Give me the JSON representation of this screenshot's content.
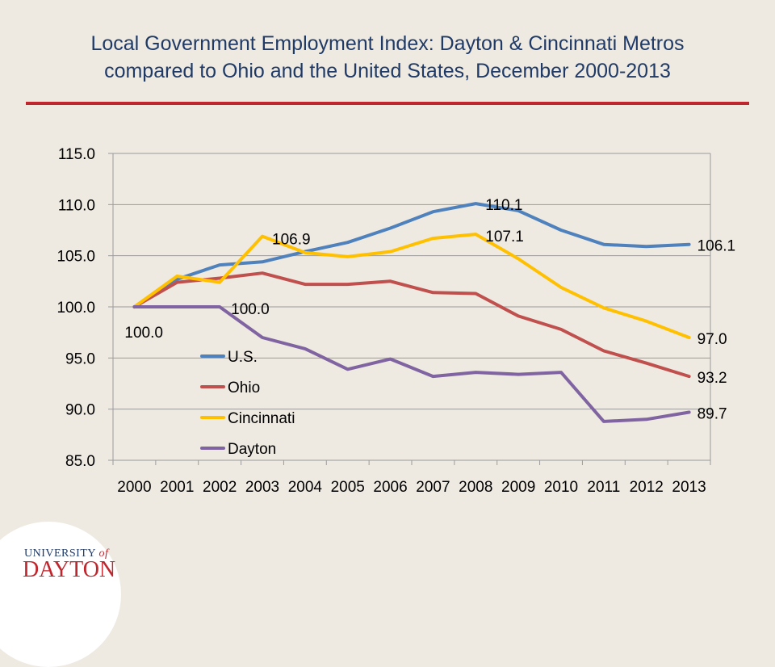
{
  "header": {
    "title_line1": "Local Government Employment Index: Dayton & Cincinnati Metros",
    "title_line2": "compared to Ohio and the United States, December 2000-2013"
  },
  "logo": {
    "university": "UNIVERSITY",
    "of": "of",
    "name": "DAYTON"
  },
  "colors": {
    "title": "#1F3A67",
    "rule": "#C0262D",
    "background": "#EEEAE1",
    "grid": "#9B9B9B"
  },
  "chart_data": {
    "type": "line",
    "categories": [
      "2000",
      "2001",
      "2002",
      "2003",
      "2004",
      "2005",
      "2006",
      "2007",
      "2008",
      "2009",
      "2010",
      "2011",
      "2012",
      "2013"
    ],
    "ylim": [
      85,
      115
    ],
    "yticks": [
      "85.0",
      "90.0",
      "95.0",
      "100.0",
      "105.0",
      "110.0",
      "115.0"
    ],
    "grid": true,
    "legend_placement": "inside-lower-left",
    "series": [
      {
        "name": "U.S.",
        "color": "#4F81BD",
        "values": [
          100.0,
          102.7,
          104.1,
          104.4,
          105.4,
          106.3,
          107.7,
          109.3,
          110.1,
          109.4,
          107.5,
          106.1,
          105.9,
          106.1
        ]
      },
      {
        "name": "Ohio",
        "color": "#C0504D",
        "values": [
          100.0,
          102.4,
          102.8,
          103.3,
          102.2,
          102.2,
          102.5,
          101.4,
          101.3,
          99.1,
          97.8,
          95.7,
          94.5,
          93.2
        ]
      },
      {
        "name": "Cincinnati",
        "color": "#FFC000",
        "values": [
          100.0,
          103.0,
          102.4,
          106.9,
          105.3,
          104.9,
          105.4,
          106.7,
          107.1,
          104.7,
          101.9,
          99.9,
          98.6,
          97.0
        ]
      },
      {
        "name": "Dayton",
        "color": "#8064A2",
        "values": [
          100.0,
          100.0,
          100.0,
          97.0,
          95.9,
          93.9,
          94.9,
          93.2,
          93.6,
          93.4,
          93.6,
          88.8,
          89.0,
          89.7
        ]
      }
    ],
    "annotations": [
      {
        "text": "100.0",
        "x": "2000",
        "y": 100.0
      },
      {
        "text": "100.0",
        "x": "2002",
        "y": 100.0
      },
      {
        "text": "106.9",
        "x": "2003",
        "y": 106.9
      },
      {
        "text": "110.1",
        "x": "2008",
        "y": 110.1
      },
      {
        "text": "107.1",
        "x": "2008",
        "y": 107.1
      },
      {
        "text": "106.1",
        "x": "2013",
        "y": 106.1
      },
      {
        "text": "97.0",
        "x": "2013",
        "y": 97.0
      },
      {
        "text": "93.2",
        "x": "2013",
        "y": 93.2
      },
      {
        "text": "89.7",
        "x": "2013",
        "y": 89.7
      }
    ]
  }
}
